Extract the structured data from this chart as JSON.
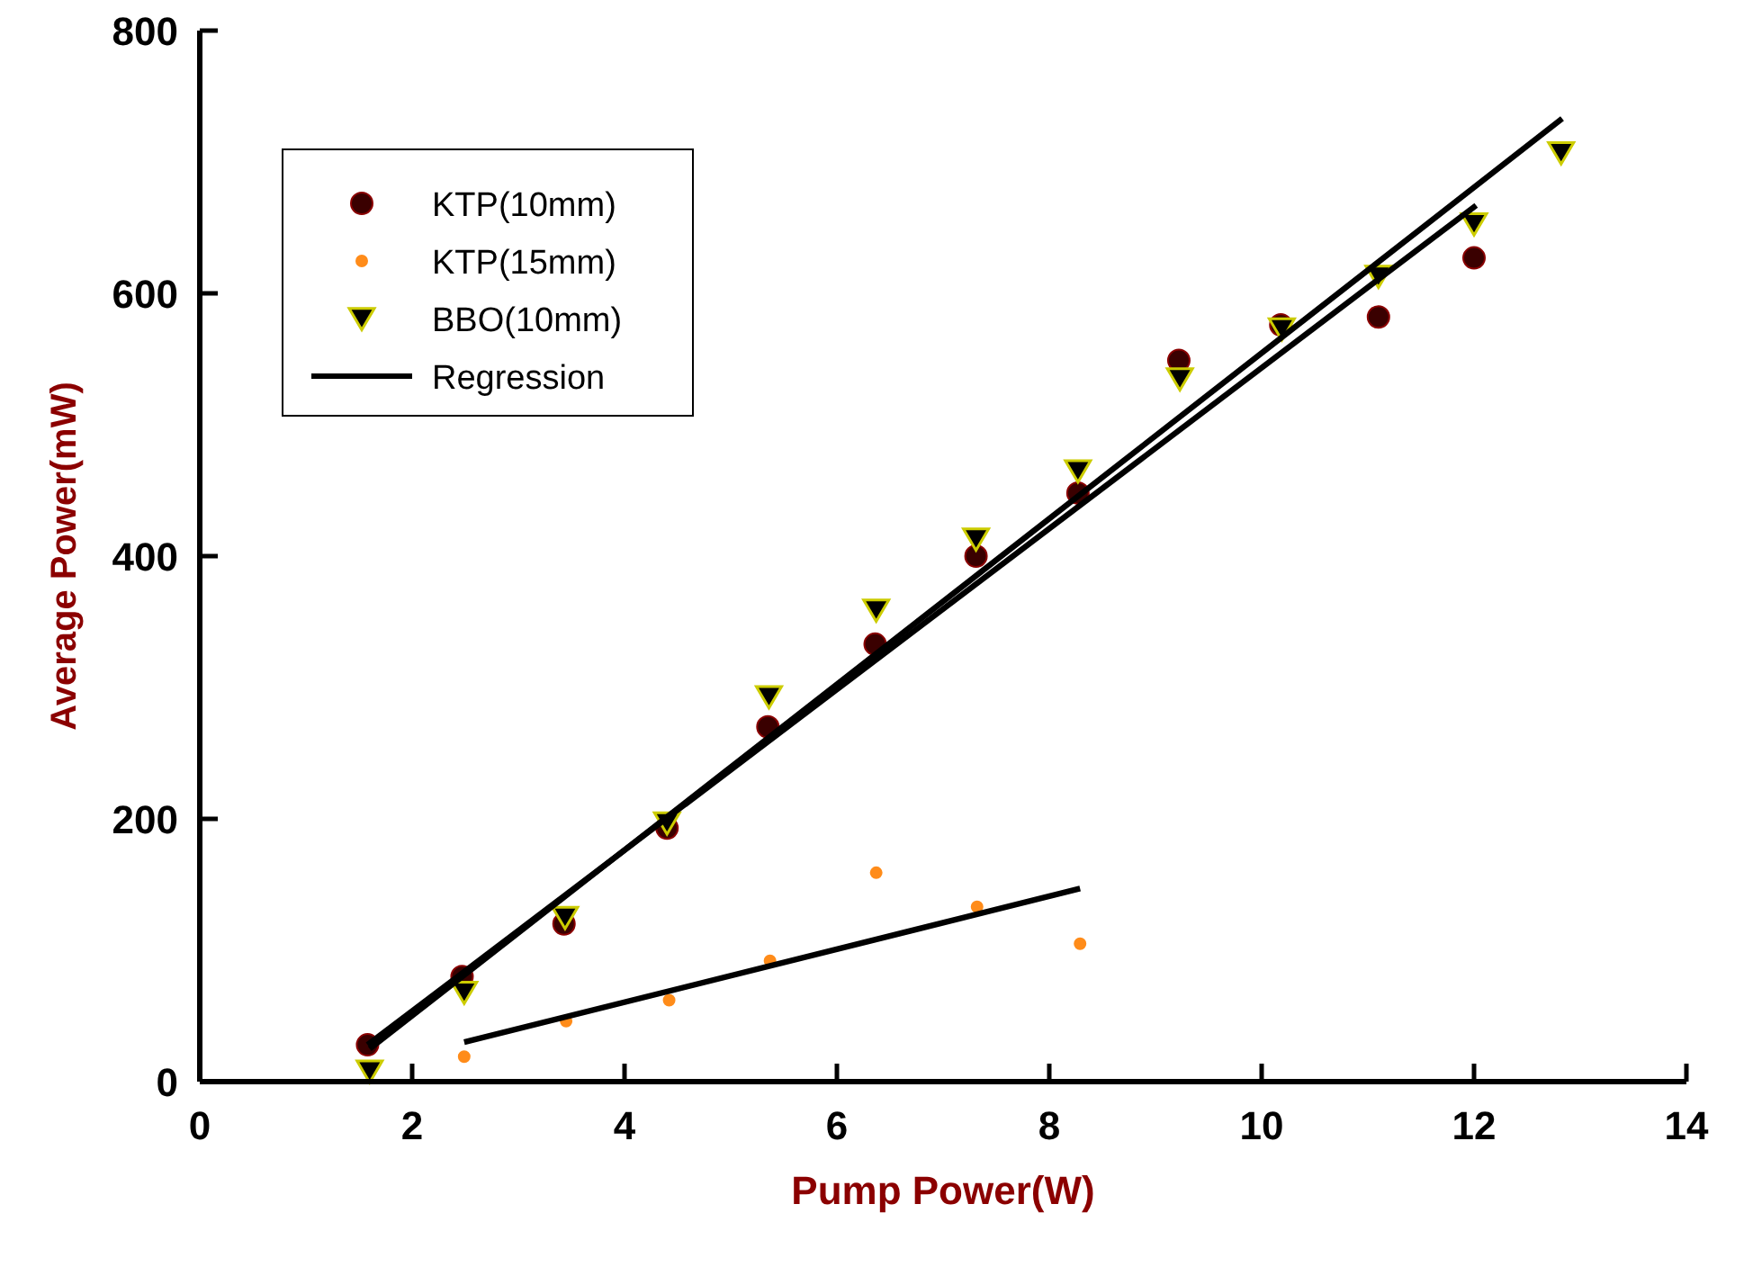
{
  "chart_data": {
    "type": "scatter",
    "xlabel": "Pump Power(W)",
    "ylabel": "Average Power(mW)",
    "xlim": [
      0,
      14
    ],
    "ylim": [
      0,
      800
    ],
    "xticks": [
      0,
      2,
      4,
      6,
      8,
      10,
      12,
      14
    ],
    "yticks": [
      0,
      200,
      400,
      600,
      800
    ],
    "grid": false,
    "legend": "top left",
    "series": [
      {
        "name": "KTP(10mm)",
        "marker": "circle",
        "color": "#3a0000",
        "x": [
          1.58,
          2.47,
          3.43,
          4.4,
          5.35,
          6.36,
          7.31,
          8.27,
          9.22,
          10.18,
          11.1,
          12.0
        ],
        "values": [
          28,
          80,
          120,
          193,
          270,
          333,
          400,
          448,
          549,
          576,
          582,
          627
        ]
      },
      {
        "name": "KTP(15mm)",
        "marker": "circle",
        "color": "#ff8c1a",
        "x": [
          2.49,
          3.45,
          4.42,
          5.37,
          6.37,
          7.32,
          8.29
        ],
        "values": [
          19,
          46,
          62,
          92,
          159,
          133,
          105
        ]
      },
      {
        "name": "BBO(10mm)",
        "marker": "triangle",
        "color": "#000000",
        "x": [
          1.6,
          2.49,
          3.44,
          4.4,
          5.36,
          6.37,
          7.31,
          8.27,
          9.23,
          10.19,
          11.1,
          12.0,
          12.82
        ],
        "values": [
          8,
          68,
          125,
          197,
          293,
          359,
          413,
          465,
          535,
          573,
          613,
          653,
          707
        ]
      },
      {
        "name": "Regression",
        "type": "line",
        "marker": "none",
        "color": "#000000",
        "x": [
          1.58,
          12.02
        ],
        "values": [
          28,
          667
        ]
      },
      {
        "type": "line",
        "marker": "none",
        "color": "#000000",
        "x": [
          1.6,
          12.83
        ],
        "values": [
          25,
          733
        ]
      },
      {
        "type": "line",
        "marker": "none",
        "color": "#000000",
        "x": [
          2.49,
          8.29
        ],
        "values": [
          30,
          147
        ]
      }
    ]
  }
}
